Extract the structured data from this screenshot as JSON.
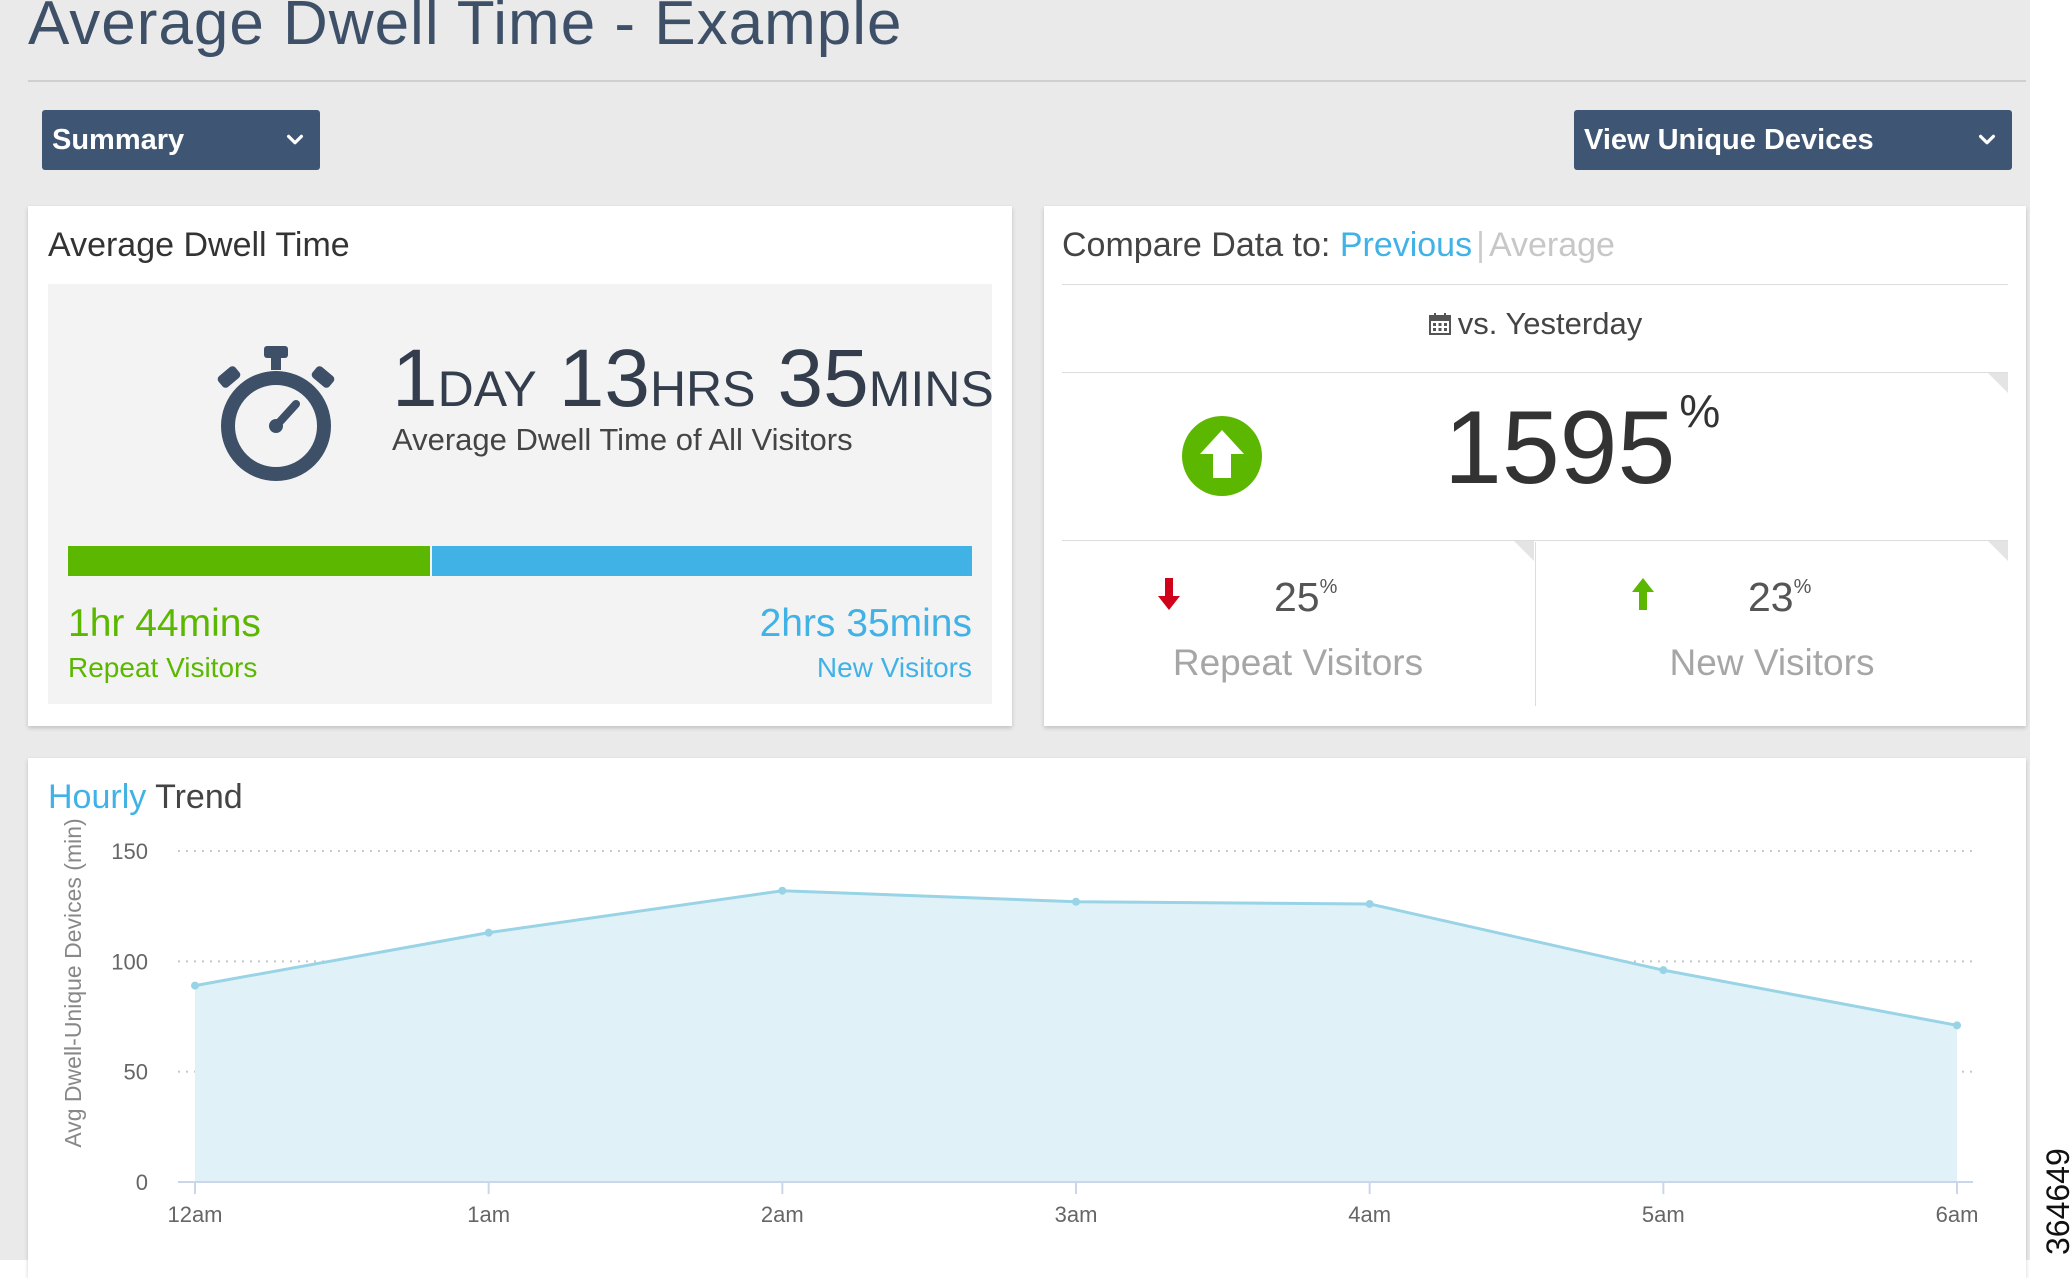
{
  "page": {
    "title": "Average Dwell Time - Example",
    "figure_id": "364649"
  },
  "toolbar": {
    "summary_label": "Summary",
    "view_label": "View Unique Devices"
  },
  "dwell_panel": {
    "title": "Average Dwell Time",
    "days": "1",
    "days_unit": "DAY",
    "hours": "13",
    "hours_unit": "HRS",
    "mins": "35",
    "mins_unit": "MINS",
    "subtitle": "Average Dwell Time of All Visitors",
    "repeat_fraction": 0.4,
    "repeat_value": "1hr 44mins",
    "repeat_label": "Repeat Visitors",
    "new_value": "2hrs 35mins",
    "new_label": "New Visitors",
    "colors": {
      "repeat": "#5cb700",
      "new": "#41b2e6"
    }
  },
  "compare_panel": {
    "label": "Compare Data to:",
    "option_previous": "Previous",
    "separator": "|",
    "option_average": "Average",
    "period": "vs. Yesterday",
    "change_value": "1595",
    "change_unit": "%",
    "repeat_change": "25",
    "repeat_unit": "%",
    "repeat_label": "Repeat Visitors",
    "new_change": "23",
    "new_unit": "%",
    "new_label": "New Visitors",
    "icons": {
      "period": "calendar-icon",
      "overall": "arrow-up-circle-icon",
      "repeat": "arrow-down-icon",
      "new": "arrow-up-icon"
    },
    "colors": {
      "up": "#5cb700",
      "down": "#d0021b",
      "accent": "#41b2e6"
    }
  },
  "trend_panel": {
    "title_highlight": "Hourly",
    "title_rest": "Trend"
  },
  "chart_data": {
    "type": "area",
    "categories": [
      "12am",
      "1am",
      "2am",
      "3am",
      "4am",
      "5am",
      "6am"
    ],
    "series": [
      {
        "values": [
          89,
          113,
          132,
          127,
          126,
          96,
          71
        ]
      }
    ],
    "title": "",
    "xlabel": "",
    "ylabel": "Avg Dwell-Unique Devices (min)",
    "ylim": [
      0,
      150
    ],
    "yticks": [
      0,
      50,
      100,
      150
    ],
    "grid": "horizontal dotted",
    "colors": {
      "line": "#99d3e6",
      "fill": "#e0f2f8"
    }
  }
}
